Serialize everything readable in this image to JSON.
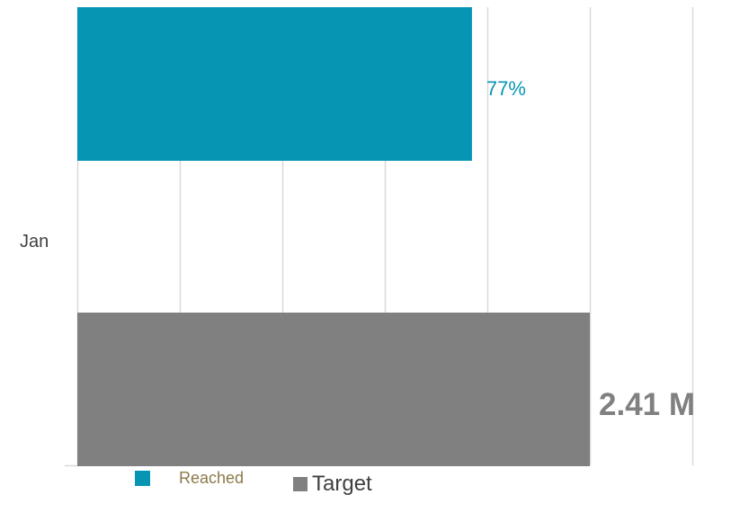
{
  "chart_data": {
    "type": "bar",
    "orientation": "horizontal",
    "categories": [
      "Jan"
    ],
    "series": [
      {
        "name": "Reached",
        "values": [
          0.77
        ],
        "label": "77%",
        "color": "#0795b4"
      },
      {
        "name": "Target",
        "values": [
          1.0
        ],
        "label": "2.41 M",
        "color": "#808080"
      }
    ],
    "xlim": [
      0,
      1.2
    ],
    "grid": true,
    "legend": "bottom"
  },
  "colors": {
    "gridline": "#d9d9d9",
    "axis_label": "#404040"
  }
}
